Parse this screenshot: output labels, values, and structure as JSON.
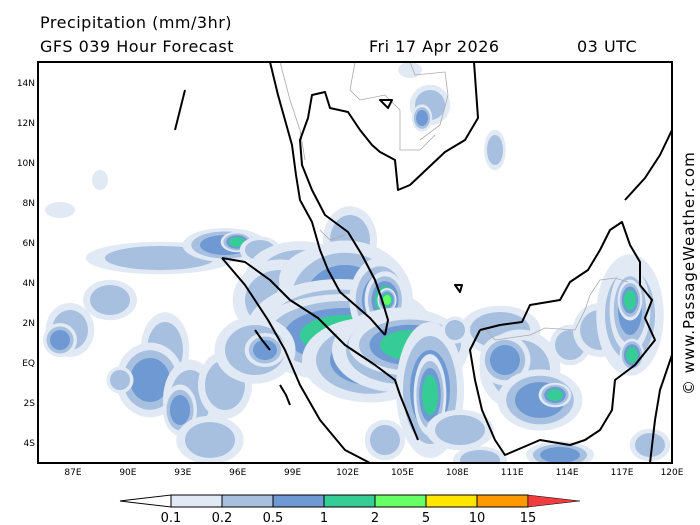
{
  "header": {
    "title": "Precipitation (mm/3hr)",
    "model": "GFS 039 Hour Forecast",
    "date": "Fri 17 Apr 2026",
    "time": "03 UTC"
  },
  "map": {
    "region": "Malay Peninsula, Sumatra, Borneo",
    "lon_ticks": [
      "87E",
      "90E",
      "93E",
      "96E",
      "99E",
      "102E",
      "105E",
      "108E",
      "111E",
      "114E",
      "117E",
      "120E"
    ],
    "lat_ticks": [
      "14N",
      "12N",
      "10N",
      "8N",
      "6N",
      "4N",
      "2N",
      "EQ",
      "2S",
      "4S"
    ],
    "watermark": "© www.PassageWeather.com"
  },
  "legend": {
    "labels": [
      "0.1",
      "0.2",
      "0.5",
      "1",
      "2",
      "5",
      "10",
      "15"
    ],
    "colors": [
      "#e1e9f4",
      "#a7c0e0",
      "#6f99d2",
      "#36cc96",
      "#66ff66",
      "#ffe600",
      "#ff9900",
      "#f03c3c"
    ],
    "units": "mm/3hr"
  }
}
